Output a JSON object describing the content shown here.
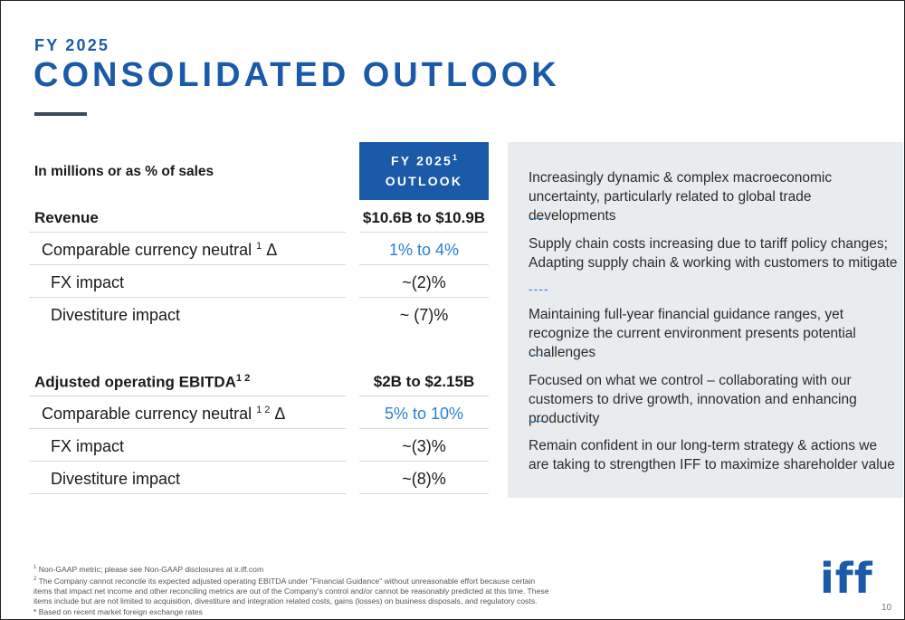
{
  "header": {
    "kicker": "FY 2025",
    "title": "CONSOLIDATED OUTLOOK"
  },
  "table": {
    "header_label": "In millions or as % of sales",
    "column_header_line1": "FY 2025",
    "column_header_sup": "1",
    "column_header_line2": "OUTLOOK",
    "rows": [
      {
        "label": "Revenue",
        "sup": "",
        "suffix": "",
        "value": "$10.6B to $10.9B"
      },
      {
        "label": "Comparable currency neutral ",
        "sup": "1",
        "suffix": " Δ",
        "value": "1% to 4%"
      },
      {
        "label": "FX impact",
        "sup": "",
        "suffix": "",
        "value": "~(2)%"
      },
      {
        "label": "Divestiture impact",
        "sup": "",
        "suffix": "",
        "value": "~ (7)%"
      },
      {
        "label": "Adjusted operating EBITDA",
        "sup": "1 2",
        "suffix": "",
        "value": "$2B to $2.15B"
      },
      {
        "label": "Comparable currency neutral ",
        "sup": "1 2",
        "suffix": " Δ",
        "value": "5% to 10%"
      },
      {
        "label": "FX impact",
        "sup": "",
        "suffix": "",
        "value": "~(3)%"
      },
      {
        "label": "Divestiture impact",
        "sup": "",
        "suffix": "",
        "value": "~(8)%"
      }
    ]
  },
  "panel": {
    "separator": "----",
    "bullets": [
      "Increasingly dynamic & complex macroeconomic uncertainty, particularly related to global trade developments",
      "Supply chain costs increasing due to tariff policy changes; Adapting supply chain & working with customers to mitigate",
      "Maintaining full-year financial guidance ranges, yet recognize the current environment presents potential challenges",
      "Focused on what we control – collaborating with our customers to drive growth, innovation and enhancing productivity",
      "Remain confident in our long-term strategy & actions we are taking to strengthen IFF to maximize shareholder value"
    ]
  },
  "footnotes": {
    "n1_mark": "1",
    "n1": " Non-GAAP metric; please see Non-GAAP disclosures at ir.iff.com",
    "n2_mark": "2",
    "n2": " The Company cannot reconcile its expected adjusted operating EBITDA under \"Financial Guidance\" without unreasonable effort because certain items that impact net income and other reconciling metrics are out of the Company's control and/or cannot be reasonably predicted at this time. These items include but are not limited to acquisition, divestiture and integration related costs, gains (losses) on business disposals, and regulatory costs.",
    "n3": "* Based on recent market foreign exchange rates"
  },
  "logo_text": "iff",
  "page_number": "10",
  "colors": {
    "brand_blue": "#1a5aa8",
    "accent_blue": "#2a7fd4",
    "panel_bg": "#e9ecef"
  }
}
